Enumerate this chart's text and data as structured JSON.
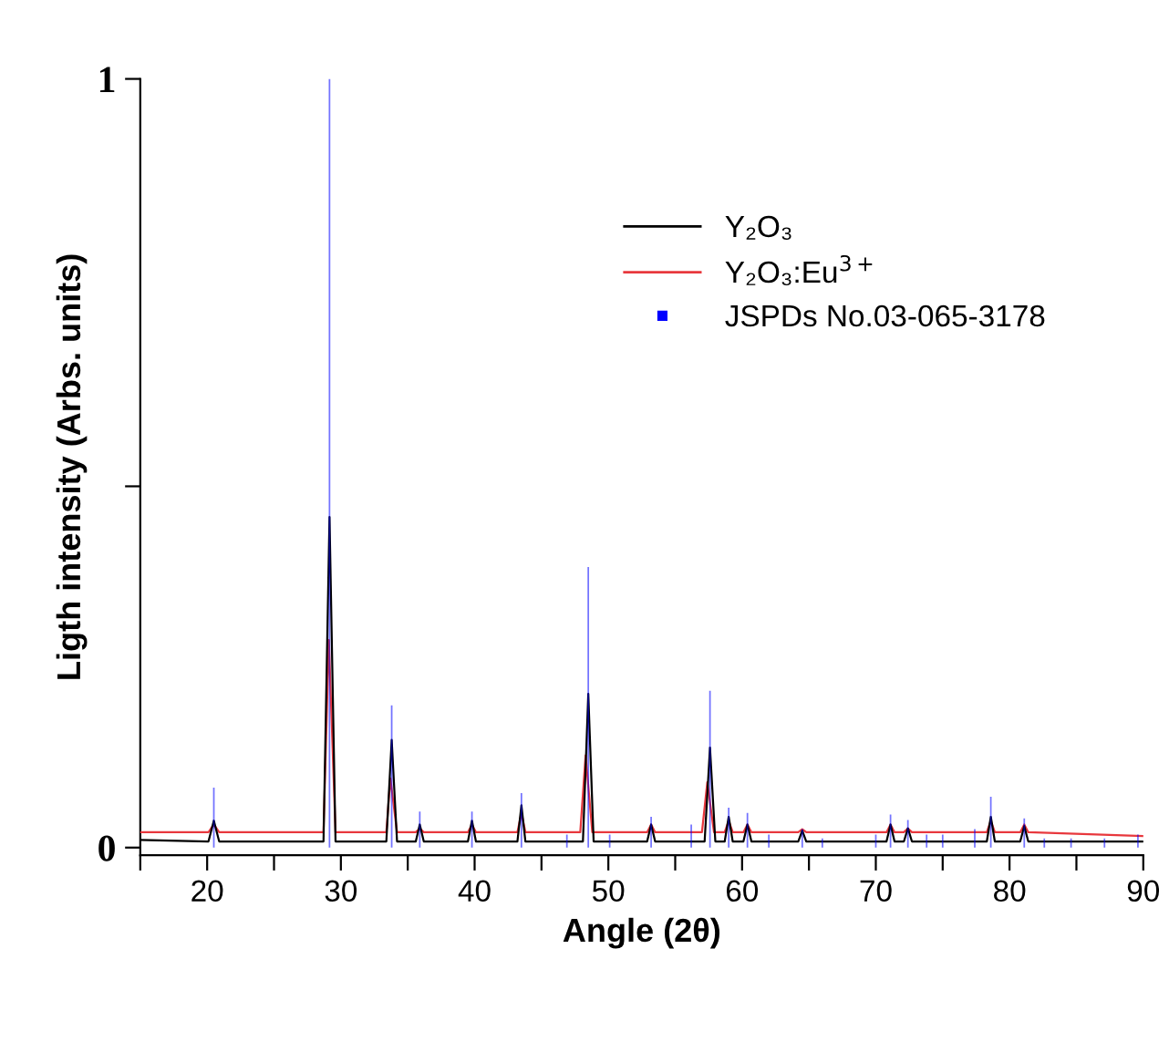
{
  "chart_data": {
    "type": "line",
    "xlabel": "Angle (2θ)",
    "ylabel": "Ligth intensity (Arbs. units)",
    "xlim": [
      15,
      90
    ],
    "ylim": [
      -0.01,
      1
    ],
    "xticks": [
      20,
      30,
      40,
      50,
      60,
      70,
      80,
      90,
      {
        "value": 15,
        "label": null
      },
      {
        "value": 25,
        "label": null
      },
      {
        "value": 35,
        "label": null
      },
      {
        "value": 45,
        "label": null
      },
      {
        "value": 55,
        "label": null
      },
      {
        "value": 65,
        "label": null
      },
      {
        "value": 75,
        "label": null
      },
      {
        "value": 85,
        "label": null
      }
    ],
    "yticks": [
      0,
      {
        "value": 0.47,
        "label": null
      },
      1
    ],
    "legend": "top right",
    "grid": false,
    "marker": "none",
    "line_style": "solid",
    "series": [
      {
        "name": "Y₂O₃",
        "color": "#000000",
        "x": [
          15,
          20.1,
          20.5,
          20.9,
          28.7,
          29.15,
          29.6,
          33.4,
          33.8,
          34.2,
          35.6,
          35.9,
          36.2,
          39.5,
          39.8,
          40.1,
          43.2,
          43.5,
          43.8,
          48.1,
          48.5,
          48.9,
          52.9,
          53.2,
          53.5,
          57.2,
          57.6,
          58.0,
          58.7,
          59.0,
          59.3,
          60.1,
          60.4,
          60.7,
          64.2,
          64.5,
          64.8,
          70.8,
          71.1,
          71.4,
          72.1,
          72.4,
          72.7,
          78.3,
          78.6,
          78.9,
          80.8,
          81.1,
          81.4,
          90
        ],
        "values": [
          0.01,
          0.008,
          0.035,
          0.008,
          0.008,
          0.43,
          0.008,
          0.008,
          0.14,
          0.008,
          0.008,
          0.03,
          0.008,
          0.008,
          0.035,
          0.008,
          0.008,
          0.055,
          0.008,
          0.008,
          0.2,
          0.008,
          0.008,
          0.03,
          0.008,
          0.008,
          0.13,
          0.008,
          0.008,
          0.04,
          0.008,
          0.008,
          0.03,
          0.008,
          0.008,
          0.022,
          0.008,
          0.008,
          0.03,
          0.008,
          0.008,
          0.025,
          0.008,
          0.008,
          0.04,
          0.008,
          0.008,
          0.028,
          0.008,
          0.008
        ]
      },
      {
        "name": "Y₂O₃:Eu$^{3+}$",
        "color": "#e8383d",
        "x": [
          15,
          20.1,
          20.5,
          20.9,
          28.7,
          29.1,
          29.6,
          33.4,
          33.7,
          34.2,
          35.6,
          35.9,
          36.2,
          39.5,
          39.8,
          40.1,
          43.2,
          43.5,
          43.8,
          47.9,
          48.3,
          48.8,
          52.9,
          53.2,
          53.5,
          57.0,
          57.4,
          57.9,
          58.7,
          59.0,
          59.3,
          60.1,
          60.4,
          60.7,
          64.2,
          64.5,
          64.8,
          70.8,
          71.1,
          71.4,
          72.1,
          72.4,
          72.7,
          78.3,
          78.6,
          78.9,
          80.8,
          81.1,
          81.4,
          90
        ],
        "values": [
          0.02,
          0.02,
          0.03,
          0.02,
          0.02,
          0.27,
          0.02,
          0.02,
          0.09,
          0.02,
          0.02,
          0.025,
          0.02,
          0.02,
          0.03,
          0.02,
          0.02,
          0.045,
          0.02,
          0.02,
          0.12,
          0.02,
          0.02,
          0.03,
          0.02,
          0.02,
          0.085,
          0.02,
          0.02,
          0.035,
          0.02,
          0.02,
          0.03,
          0.02,
          0.02,
          0.024,
          0.02,
          0.02,
          0.03,
          0.02,
          0.02,
          0.025,
          0.02,
          0.02,
          0.035,
          0.02,
          0.02,
          0.03,
          0.02,
          0.015
        ]
      },
      {
        "name": "JSPDs No.03-065-3178",
        "color": "#0000ff",
        "type": "bar",
        "x": [
          20.5,
          29.15,
          33.8,
          35.9,
          39.8,
          43.5,
          46.9,
          48.5,
          50.1,
          53.2,
          56.2,
          57.6,
          59.0,
          60.4,
          62.0,
          64.5,
          66.0,
          70.0,
          71.1,
          72.4,
          73.8,
          75.0,
          77.4,
          78.6,
          81.1,
          82.6,
          84.6,
          87.1,
          89.6
        ],
        "values": [
          0.078,
          1.0,
          0.185,
          0.047,
          0.047,
          0.071,
          0.017,
          0.365,
          0.017,
          0.04,
          0.03,
          0.204,
          0.052,
          0.045,
          0.017,
          0.024,
          0.012,
          0.017,
          0.043,
          0.036,
          0.017,
          0.017,
          0.024,
          0.066,
          0.038,
          0.012,
          0.012,
          0.012,
          0.017
        ]
      }
    ]
  }
}
